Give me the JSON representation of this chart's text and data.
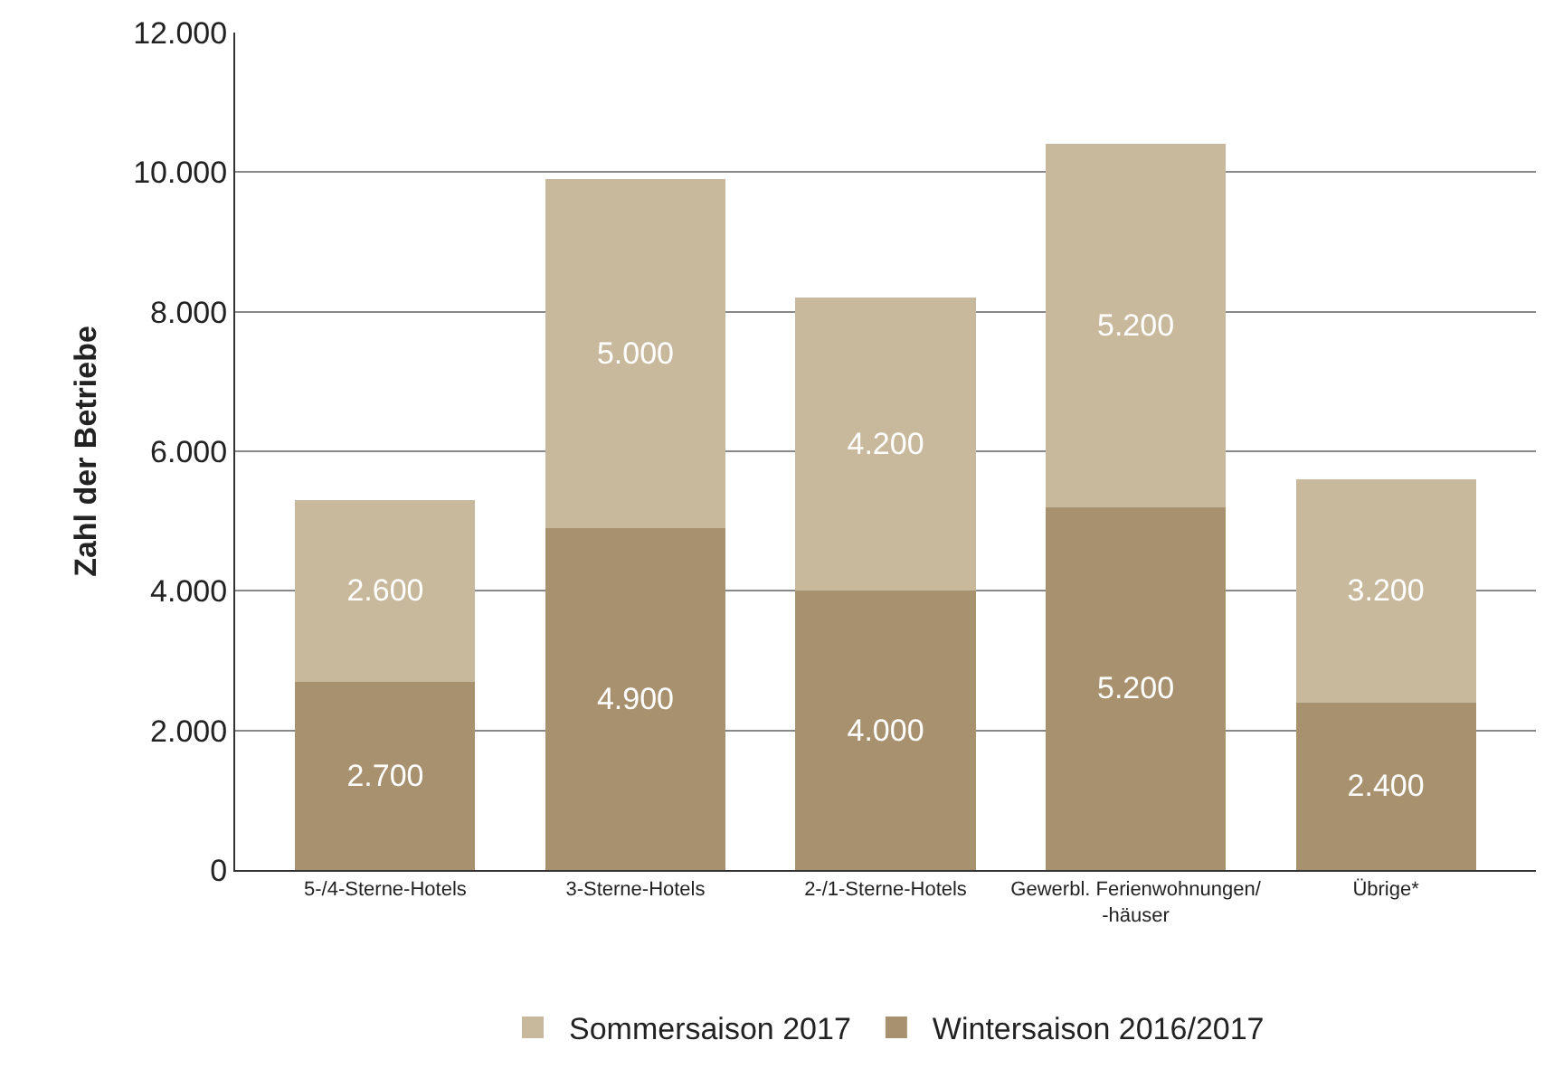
{
  "chart_data": {
    "type": "bar",
    "stacked": true,
    "ylabel": "Zahl der Betriebe",
    "categories": [
      "5-/4-Sterne-Hotels",
      "3-Sterne-Hotels",
      "2-/1-Sterne-Hotels",
      "Gewerbl. Ferienwohnungen/\n-häuser",
      "Übrige*"
    ],
    "series": [
      {
        "name": "Wintersaison 2016/2017",
        "color": "#a8916f",
        "values": [
          2700,
          4900,
          4000,
          5200,
          2400
        ],
        "value_labels": [
          "2.700",
          "4.900",
          "4.000",
          "5.200",
          "2.400"
        ]
      },
      {
        "name": "Sommersaison 2017",
        "color": "#c8b89c",
        "values": [
          2600,
          5000,
          4200,
          5200,
          3200
        ],
        "value_labels": [
          "2.600",
          "5.000",
          "4.200",
          "5.200",
          "3.200"
        ]
      }
    ],
    "ylim": [
      0,
      12000
    ],
    "yticks": [
      {
        "value": 0,
        "label": "0"
      },
      {
        "value": 2000,
        "label": "2.000"
      },
      {
        "value": 4000,
        "label": "4.000"
      },
      {
        "value": 6000,
        "label": "6.000"
      },
      {
        "value": 8000,
        "label": "8.000"
      },
      {
        "value": 10000,
        "label": "10.000"
      },
      {
        "value": 12000,
        "label": "12.000"
      }
    ],
    "grid": "y",
    "legend": "bottom"
  }
}
